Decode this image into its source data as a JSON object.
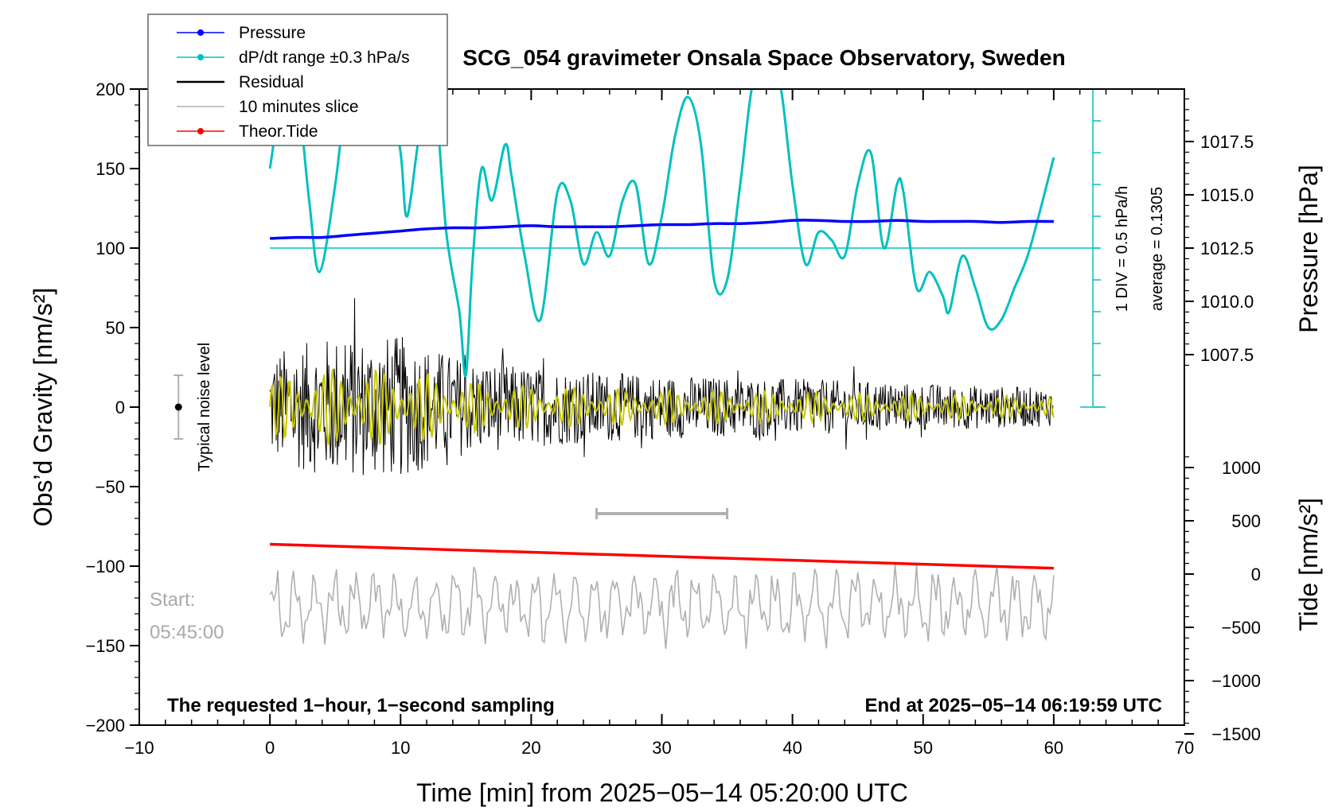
{
  "chart_data": {
    "type": "line",
    "title": "SCG_054 gravimeter Onsala Space Observatory, Sweden",
    "xlabel": "Time [min] from 2025−05−14 05:20:00 UTC",
    "ylabel_left": "Obs’d Gravity [nm/s²]",
    "ylabel_right_top": "Pressure [hPa]",
    "ylabel_right_bottom": "Tide [nm/s²]",
    "xlim": [
      -10,
      70
    ],
    "ylim_left": [
      -200,
      200
    ],
    "xticks": [
      "−10",
      "0",
      "10",
      "20",
      "30",
      "40",
      "50",
      "60",
      "70"
    ],
    "yticks_left": [
      "−200",
      "−150",
      "−100",
      "−50",
      "0",
      "50",
      "100",
      "150",
      "200"
    ],
    "yticks_pressure": [
      "1007.5",
      "1010.0",
      "1012.5",
      "1015.0",
      "1017.5"
    ],
    "yticks_tide": [
      "−1500",
      "−1000",
      "−500",
      "0",
      "500",
      "1000"
    ],
    "pressure_axis_range": [
      1005,
      1020
    ],
    "tide_axis_range": [
      -1500,
      1500
    ],
    "legend": {
      "position": "top-left",
      "entries": [
        {
          "label": "Pressure",
          "color": "#0000ff"
        },
        {
          "label": "dP/dt range ±0.3 hPa/s",
          "color": "#00c0c0"
        },
        {
          "label": "Residual",
          "color": "#000000"
        },
        {
          "label": "10 minutes slice",
          "color": "#b0b0b0"
        },
        {
          "label": "Theor.Tide",
          "color": "#ff0000"
        }
      ]
    },
    "series": [
      {
        "name": "Pressure",
        "color": "#0000ff",
        "axis": "pressure",
        "x": [
          0,
          2,
          4,
          6,
          8,
          10,
          12,
          14,
          16,
          18,
          20,
          22,
          24,
          26,
          28,
          30,
          32,
          34,
          36,
          38,
          40,
          42,
          44,
          46,
          48,
          50,
          52,
          54,
          56,
          58,
          60
        ],
        "y": [
          1012.95,
          1013.0,
          1013.0,
          1013.1,
          1013.2,
          1013.3,
          1013.4,
          1013.45,
          1013.45,
          1013.5,
          1013.55,
          1013.5,
          1013.5,
          1013.5,
          1013.55,
          1013.6,
          1013.6,
          1013.65,
          1013.65,
          1013.7,
          1013.8,
          1013.8,
          1013.75,
          1013.75,
          1013.8,
          1013.75,
          1013.75,
          1013.75,
          1013.7,
          1013.75,
          1013.75
        ]
      },
      {
        "name": "dP/dt range ±0.3 hPa/s",
        "color": "#00c0c0",
        "axis": "left",
        "x": [
          0,
          1,
          2,
          3,
          3.8,
          5,
          6,
          7,
          8,
          9,
          10,
          10.5,
          11.5,
          12.5,
          13.5,
          14.5,
          15,
          15.5,
          16.2,
          17,
          18,
          18.5,
          19.5,
          20.7,
          22,
          23,
          24,
          25,
          26,
          27,
          28,
          29,
          30,
          31,
          32,
          33,
          34,
          35,
          36,
          37,
          38,
          39,
          40,
          41,
          42,
          43,
          44,
          45,
          46,
          47,
          48,
          48.5,
          49.5,
          50.5,
          51.5,
          52,
          53,
          54,
          55,
          56,
          57,
          58,
          59,
          60
        ],
        "y": [
          150,
          200,
          205,
          130,
          85,
          140,
          205,
          210,
          205,
          210,
          160,
          120,
          175,
          205,
          110,
          60,
          20,
          90,
          150,
          130,
          165,
          145,
          95,
          55,
          135,
          130,
          90,
          110,
          95,
          130,
          140,
          90,
          120,
          170,
          195,
          165,
          80,
          80,
          140,
          205,
          205,
          205,
          140,
          90,
          110,
          105,
          95,
          140,
          160,
          100,
          140,
          135,
          75,
          85,
          70,
          60,
          95,
          75,
          50,
          55,
          75,
          95,
          125,
          157
        ]
      },
      {
        "name": "Residual",
        "color": "#000000",
        "axis": "left",
        "envelope": [
          [
            0,
            35
          ],
          [
            5,
            45
          ],
          [
            10,
            45
          ],
          [
            15,
            30
          ],
          [
            20,
            25
          ],
          [
            30,
            20
          ],
          [
            40,
            18
          ],
          [
            50,
            15
          ],
          [
            60,
            12
          ]
        ]
      },
      {
        "name": "Theor.Tide",
        "color": "#ff0000",
        "axis": "tide",
        "x": [
          0,
          60
        ],
        "y": [
          280,
          55
        ]
      }
    ],
    "slice_marker_x": [
      25,
      35
    ],
    "start_label": "Start:",
    "start_time": "05:45:00",
    "noise_label": "Typical noise level",
    "noise_bar": [
      -20,
      20
    ],
    "dpdt_scale": "1 DIV = 0.5 hPa/h",
    "dpdt_average": "average = 0.1305",
    "bottom_left_note": "The requested 1−hour, 1−second sampling",
    "bottom_right_note": "End at 2025−05−14 06:19:59 UTC"
  }
}
